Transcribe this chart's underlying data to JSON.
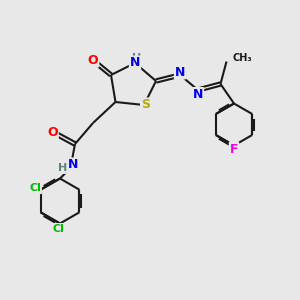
{
  "bg_color": "#e8e8e8",
  "bond_color": "#1a1a1a",
  "atom_colors": {
    "O": "#ff0000",
    "N": "#0000ee",
    "S": "#bbaa00",
    "Cl": "#00bb00",
    "F": "#ee00ee",
    "H": "#608080",
    "C": "#1a1a1a"
  },
  "figsize": [
    3.0,
    3.0
  ],
  "dpi": 100
}
